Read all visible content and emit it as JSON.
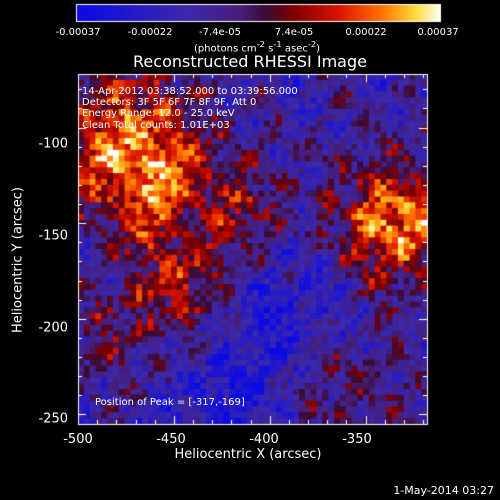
{
  "colorbar": {
    "ticks": [
      "-0.00037",
      "-0.00022",
      "-7.4e-05",
      "7.4e-05",
      "0.00022",
      "0.00037"
    ],
    "units_prefix": "(photons cm",
    "units_exp1": "-2",
    "units_mid1": " s",
    "units_exp2": "-1",
    "units_mid2": " asec",
    "units_exp3": "-2",
    "units_suffix": ")"
  },
  "plot": {
    "title": "Reconstructed RHESSI Image",
    "info_line1": "14-Apr-2012 03:38:52.000 to 03:39:56.000",
    "info_line2": "Detectors: 3F 5F 6F 7F 8F 9F, Att 0",
    "info_line3": "Energy Range: 12.0 - 25.0 keV",
    "info_line4": "Clean     Total counts: 1.01E+03",
    "peak_label": "Position of Peak = [-317,-169]",
    "xlabel": "Heliocentric X (arcsec)",
    "ylabel": "Heliocentric Y (arcsec)",
    "x_ticks": [
      "-500",
      "-450",
      "-400",
      "-350"
    ],
    "y_ticks": [
      "-100",
      "-150",
      "-200",
      "-250"
    ],
    "xlim": [
      -500,
      -318
    ],
    "ylim": [
      -255,
      -72
    ]
  },
  "footer": {
    "date_stamp": "1-May-2014 03:27"
  },
  "colors": {
    "background": "#000000",
    "text": "#ffffff"
  }
}
